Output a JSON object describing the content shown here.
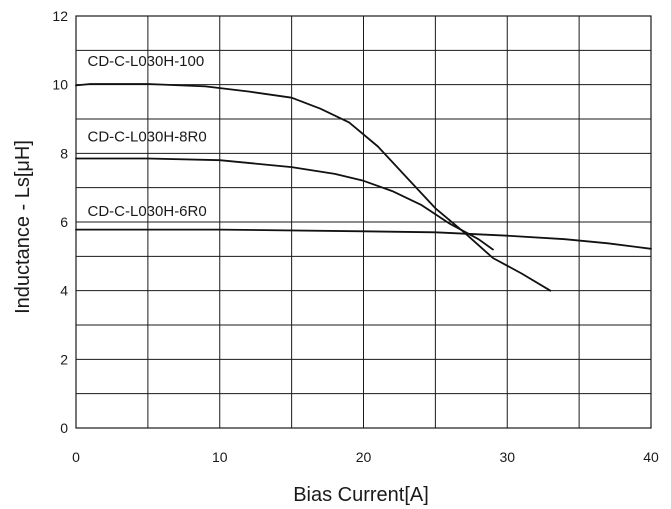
{
  "chart_data": {
    "type": "line",
    "xlabel": "Bias Current[A]",
    "ylabel": "Inductance - Ls[μH]",
    "xlim": [
      0,
      40
    ],
    "ylim": [
      0,
      12
    ],
    "x_ticks": [
      0,
      10,
      20,
      30,
      40
    ],
    "y_ticks": [
      0,
      2,
      4,
      6,
      8,
      10,
      12
    ],
    "x_grid_step": 5,
    "y_grid_step": 1,
    "grid": true,
    "line_color": "#111111",
    "series": [
      {
        "name": "CD-C-L030H-100",
        "points": [
          [
            0,
            9.98
          ],
          [
            1,
            10.02
          ],
          [
            5,
            10.02
          ],
          [
            9,
            9.95
          ],
          [
            12,
            9.8
          ],
          [
            15,
            9.62
          ],
          [
            17,
            9.3
          ],
          [
            19,
            8.9
          ],
          [
            21,
            8.2
          ],
          [
            23,
            7.3
          ],
          [
            25,
            6.4
          ],
          [
            27,
            5.7
          ],
          [
            29,
            4.95
          ],
          [
            31,
            4.5
          ],
          [
            33,
            4.0
          ]
        ]
      },
      {
        "name": "CD-C-L030H-8R0",
        "points": [
          [
            0,
            7.85
          ],
          [
            5,
            7.85
          ],
          [
            10,
            7.8
          ],
          [
            15,
            7.6
          ],
          [
            18,
            7.4
          ],
          [
            20,
            7.2
          ],
          [
            22,
            6.9
          ],
          [
            24,
            6.5
          ],
          [
            26,
            5.95
          ],
          [
            28,
            5.5
          ],
          [
            29,
            5.2
          ]
        ]
      },
      {
        "name": "CD-C-L030H-6R0",
        "points": [
          [
            0,
            5.78
          ],
          [
            10,
            5.78
          ],
          [
            20,
            5.73
          ],
          [
            25,
            5.7
          ],
          [
            30,
            5.6
          ],
          [
            34,
            5.5
          ],
          [
            37,
            5.38
          ],
          [
            40,
            5.22
          ]
        ]
      }
    ],
    "series_label_pos": [
      {
        "x": 0.8,
        "y": 10.55
      },
      {
        "x": 0.8,
        "y": 8.35
      },
      {
        "x": 0.8,
        "y": 6.18
      }
    ]
  }
}
